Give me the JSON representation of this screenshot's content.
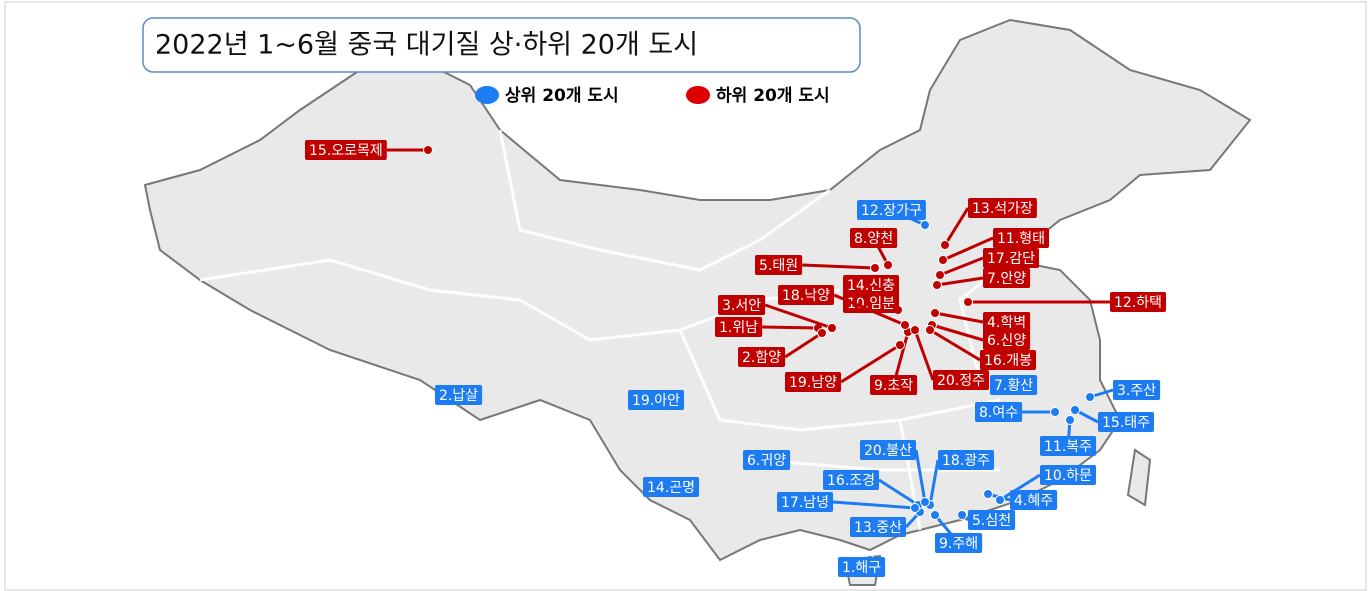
{
  "title": "2022년 1~6월 중국 대기질 상·하위 20개 도시",
  "legend": {
    "top": "상위 20개 도시",
    "bottom": "하위 20개 도시"
  },
  "top_cities": [
    "1.해구",
    "2.납살",
    "3.주산",
    "4.혜주",
    "5.심천",
    "6.귀양",
    "7.황산",
    "8.여수",
    "9.주해",
    "10.하문",
    "11.복주",
    "12.장가구",
    "13.중산",
    "14.곤명",
    "15.태주",
    "16.조경",
    "17.남녕",
    "18.광주",
    "19.아안",
    "20.불산"
  ],
  "bottom_cities": [
    "1.위남",
    "2.함양",
    "3.서안",
    "4.학벽",
    "5.태원",
    "6.신양",
    "7.안양",
    "8.양천",
    "9.초작",
    "10.임분",
    "11.형태",
    "12.하택",
    "13.석가장",
    "14.신충",
    "15.오로목제",
    "16.개봉",
    "17.감단",
    "18.낙양",
    "19.남양",
    "20.정주"
  ]
}
